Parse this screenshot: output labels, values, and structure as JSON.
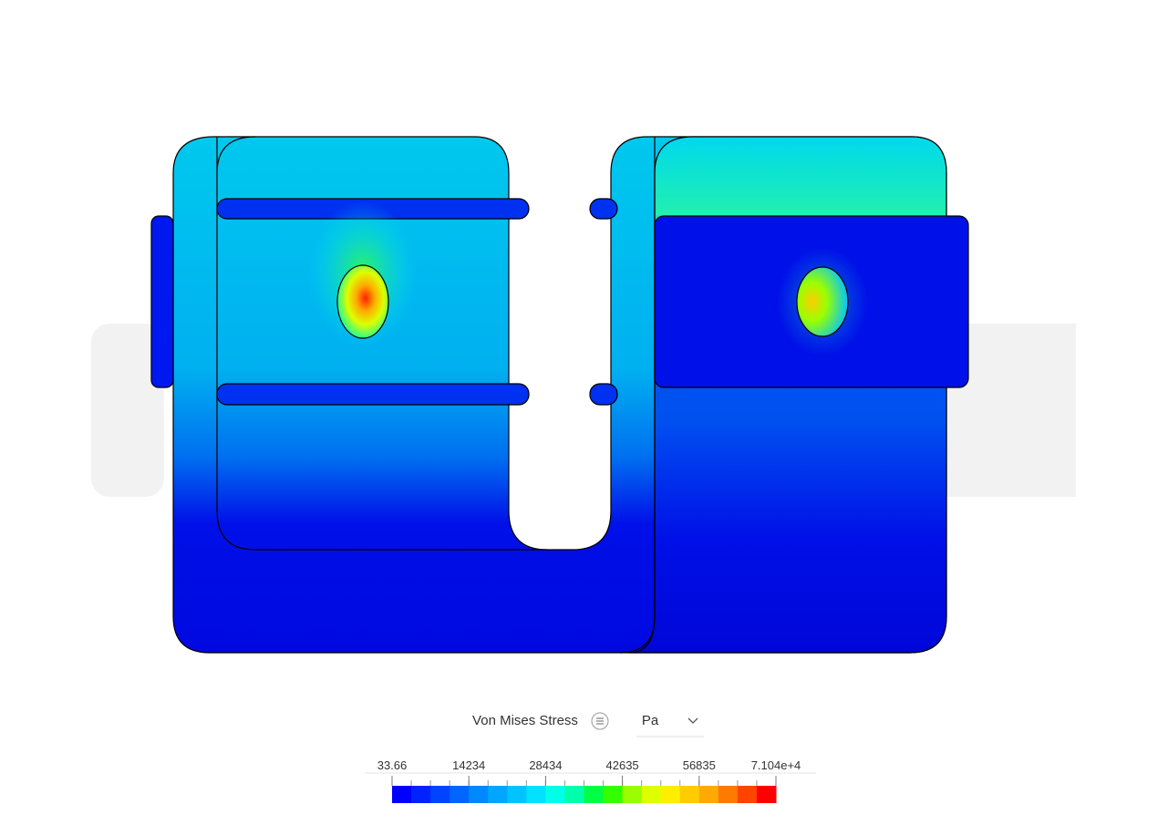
{
  "legend": {
    "title": "Von Mises Stress",
    "unit": "Pa",
    "tick_labels": [
      "33.66",
      "14234",
      "28434",
      "42635",
      "56835",
      "7.104e+4"
    ],
    "colors": [
      "#0000ff",
      "#0022ff",
      "#0044ff",
      "#0066ff",
      "#0088ff",
      "#00a6ff",
      "#00c4ff",
      "#00e2ff",
      "#00ffe8",
      "#00ffaa",
      "#00ff44",
      "#33ff00",
      "#99ff00",
      "#ddff00",
      "#ffee00",
      "#ffcc00",
      "#ffaa00",
      "#ff7a00",
      "#ff4400",
      "#ff0000"
    ]
  }
}
